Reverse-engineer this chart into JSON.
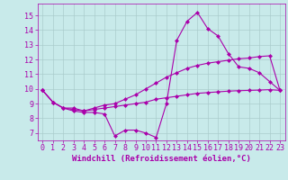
{
  "background_color": "#c8eaea",
  "grid_color": "#aacccc",
  "line_color": "#aa00aa",
  "marker": "D",
  "markersize": 2,
  "linewidth": 0.8,
  "xlabel": "Windchill (Refroidissement éolien,°C)",
  "xlabel_fontsize": 6.5,
  "tick_fontsize": 6,
  "xlim": [
    -0.5,
    23.5
  ],
  "ylim": [
    6.5,
    15.8
  ],
  "yticks": [
    7,
    8,
    9,
    10,
    11,
    12,
    13,
    14,
    15
  ],
  "xticks": [
    0,
    1,
    2,
    3,
    4,
    5,
    6,
    7,
    8,
    9,
    10,
    11,
    12,
    13,
    14,
    15,
    16,
    17,
    18,
    19,
    20,
    21,
    22,
    23
  ],
  "curve1_x": [
    0,
    1,
    2,
    3,
    4,
    5,
    6,
    7,
    8,
    9,
    10,
    11,
    12,
    13,
    14,
    15,
    16,
    17,
    18,
    19,
    20,
    21,
    22,
    23
  ],
  "curve1_y": [
    9.9,
    9.1,
    8.7,
    8.5,
    8.4,
    8.4,
    8.3,
    6.8,
    7.2,
    7.2,
    7.0,
    6.7,
    9.0,
    13.3,
    14.6,
    15.2,
    14.1,
    13.6,
    12.4,
    11.5,
    11.4,
    11.1,
    10.5,
    9.9
  ],
  "curve2_x": [
    0,
    1,
    2,
    3,
    4,
    5,
    6,
    7,
    8,
    9,
    10,
    11,
    12,
    13,
    14,
    15,
    16,
    17,
    18,
    19,
    20,
    21,
    22,
    23
  ],
  "curve2_y": [
    9.9,
    9.1,
    8.7,
    8.6,
    8.5,
    8.7,
    8.9,
    9.0,
    9.3,
    9.6,
    10.0,
    10.4,
    10.8,
    11.1,
    11.4,
    11.6,
    11.75,
    11.85,
    11.95,
    12.05,
    12.1,
    12.2,
    12.25,
    9.9
  ],
  "curve3_x": [
    0,
    1,
    2,
    3,
    4,
    5,
    6,
    7,
    8,
    9,
    10,
    11,
    12,
    13,
    14,
    15,
    16,
    17,
    18,
    19,
    20,
    21,
    22,
    23
  ],
  "curve3_y": [
    9.9,
    9.1,
    8.7,
    8.7,
    8.5,
    8.6,
    8.7,
    8.8,
    8.9,
    9.0,
    9.1,
    9.3,
    9.4,
    9.5,
    9.6,
    9.7,
    9.75,
    9.8,
    9.85,
    9.88,
    9.9,
    9.92,
    9.95,
    9.9
  ]
}
